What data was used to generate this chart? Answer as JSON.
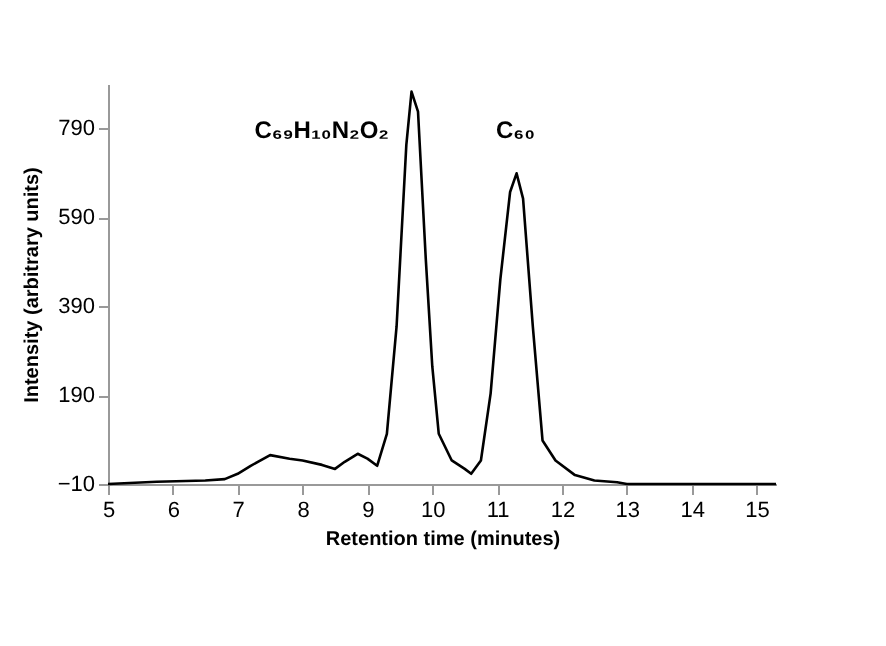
{
  "chart_data": {
    "type": "line",
    "xlabel": "Retention time (minutes)",
    "ylabel": "Intensity (arbitrary units)",
    "xlim": [
      5,
      15.3
    ],
    "xticks": [
      5,
      6,
      7,
      8,
      9,
      10,
      11,
      12,
      13,
      14,
      15
    ],
    "ylim": [
      -10,
      890
    ],
    "yticks": [
      -10,
      190,
      390,
      590,
      790
    ],
    "grid": false,
    "line_style": "solid",
    "marker": "none",
    "x": [
      5,
      5.75,
      6.5,
      6.8,
      7.0,
      7.2,
      7.5,
      7.8,
      8.0,
      8.3,
      8.5,
      8.65,
      8.85,
      9.0,
      9.15,
      9.3,
      9.45,
      9.6,
      9.68,
      9.78,
      9.9,
      10.0,
      10.1,
      10.3,
      10.5,
      10.6,
      10.75,
      10.9,
      11.05,
      11.2,
      11.3,
      11.4,
      11.55,
      11.7,
      11.9,
      12.2,
      12.5,
      12.85,
      13.0,
      15.3
    ],
    "series": [
      {
        "color": "#000000",
        "values": [
          -10,
          -5,
          -2,
          1,
          13,
          31,
          55,
          47,
          43,
          33,
          24,
          40,
          58,
          47,
          31,
          103,
          345,
          753,
          873,
          828,
          496,
          255,
          103,
          43,
          24,
          13,
          43,
          194,
          451,
          647,
          689,
          632,
          345,
          88,
          43,
          10,
          -2,
          -6,
          -10,
          -10
        ]
      }
    ],
    "annotations": [
      "C₆₉H₁₀N₂O₂",
      "C₆₀"
    ]
  }
}
